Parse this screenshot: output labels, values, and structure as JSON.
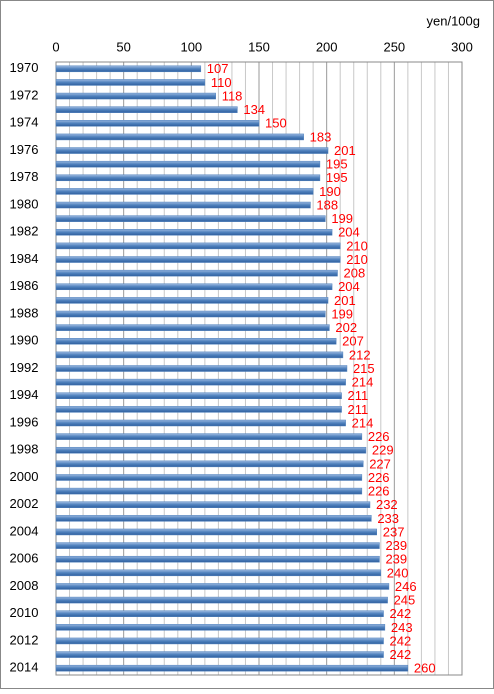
{
  "chart_data": {
    "type": "barh",
    "unit_label": "yen/100g",
    "categories": [
      "1970",
      null,
      "1972",
      null,
      "1974",
      null,
      "1976",
      null,
      "1978",
      null,
      "1980",
      null,
      "1982",
      null,
      "1984",
      null,
      "1986",
      null,
      "1988",
      null,
      "1990",
      null,
      "1992",
      null,
      "1994",
      null,
      "1996",
      null,
      "1998",
      null,
      "2000",
      null,
      "2002",
      null,
      "2004",
      null,
      "2006",
      null,
      "2008",
      null,
      "2010",
      null,
      "2012",
      null,
      "2014"
    ],
    "values": [
      107,
      110,
      118,
      134,
      150,
      183,
      201,
      195,
      195,
      190,
      188,
      199,
      204,
      210,
      210,
      208,
      204,
      201,
      199,
      202,
      207,
      212,
      215,
      214,
      211,
      211,
      214,
      226,
      229,
      227,
      226,
      226,
      232,
      233,
      237,
      239,
      239,
      240,
      246,
      245,
      242,
      243,
      242,
      242,
      260
    ],
    "color": "#4f81bd",
    "value_label_color": "#ff0000",
    "xlim": [
      0,
      300
    ],
    "xticks": [
      0,
      50,
      100,
      150,
      200,
      250,
      300
    ],
    "x_gridlines": [
      10,
      20,
      30,
      40,
      60,
      70,
      80,
      90,
      110,
      120,
      130,
      140,
      160,
      170,
      180,
      190,
      210,
      220,
      230,
      240,
      260,
      270,
      280,
      290
    ],
    "grid": true
  }
}
